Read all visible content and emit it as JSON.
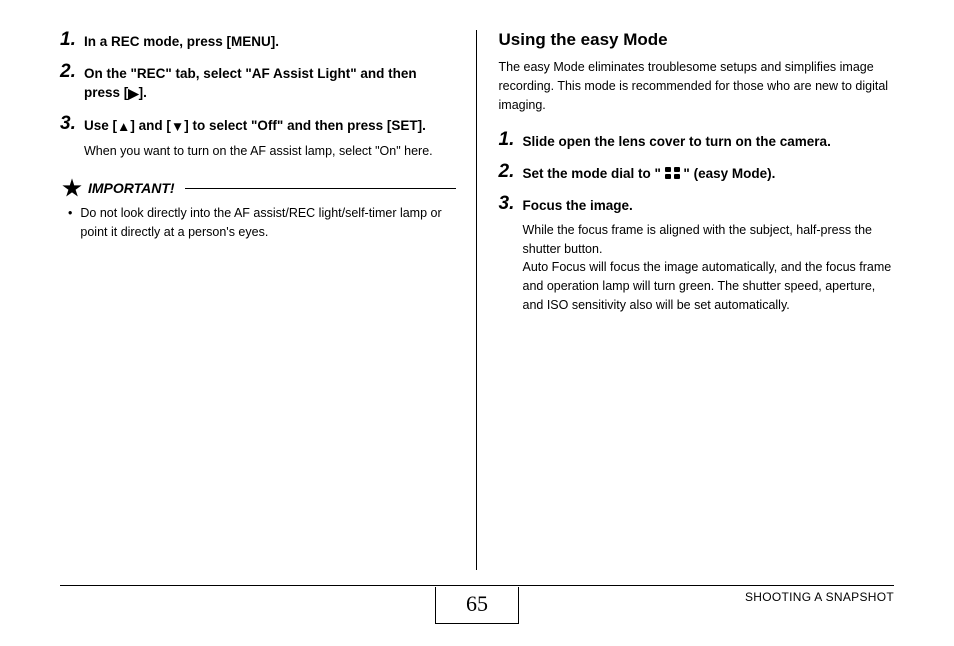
{
  "page_number": "65",
  "section_name": "SHOOTING A SNAPSHOT",
  "left": {
    "steps": [
      {
        "num": "1.",
        "head": "In a REC mode, press [MENU]."
      },
      {
        "num": "2.",
        "head_parts": [
          "On the \"REC\" tab, select \"AF Assist Light\" and then press [",
          "]."
        ]
      },
      {
        "num": "3.",
        "head_parts": [
          "Use [",
          "] and [",
          "] to select \"Off\" and then press [SET]."
        ],
        "note": "When you want to turn on the AF assist lamp, select \"On\" here."
      }
    ],
    "important_label": "IMPORTANT!",
    "important_bullet": "Do not look directly into the AF assist/REC light/self-timer lamp or point it directly at a person's eyes."
  },
  "right": {
    "heading": "Using the easy Mode",
    "intro": "The easy Mode eliminates troublesome setups and simplifies image recording. This mode is recommended for those who are new to digital imaging.",
    "steps": [
      {
        "num": "1.",
        "head": "Slide open the lens cover to turn on the camera."
      },
      {
        "num": "2.",
        "head_parts": [
          "Set the mode dial to \" ",
          " \" (easy Mode)."
        ]
      },
      {
        "num": "3.",
        "head": "Focus the image.",
        "note": "While the focus frame is aligned with the subject, half-press the shutter button.\nAuto Focus will focus the image automatically, and the focus frame and operation lamp will turn green. The shutter speed, aperture, and ISO sensitivity also will be set automatically."
      }
    ]
  },
  "icons": {
    "right_arrow": "▶",
    "up_arrow": "▲",
    "down_arrow": "▼"
  },
  "style": {
    "font_body": 13,
    "font_heading": 17,
    "font_stepnum": 19,
    "font_page": 22,
    "colors": {
      "text": "#000000",
      "bg": "#ffffff",
      "rule": "#000000"
    }
  }
}
